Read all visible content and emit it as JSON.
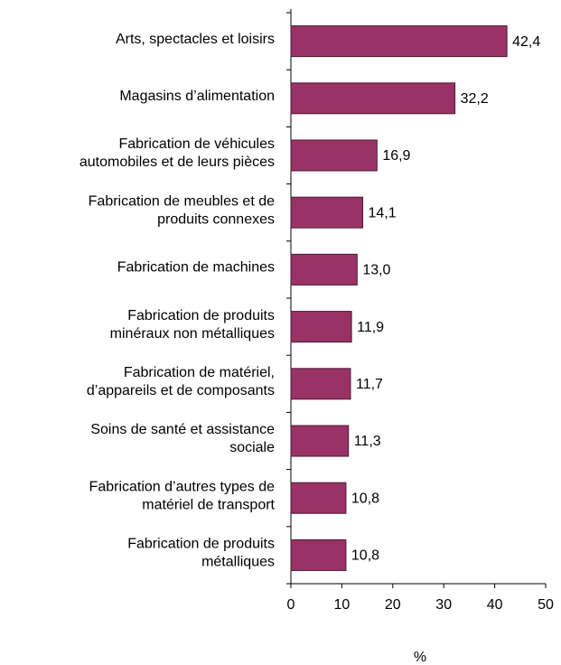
{
  "chart_data": {
    "type": "bar",
    "orientation": "horizontal",
    "categories": [
      [
        "Arts, spectacles et loisirs"
      ],
      [
        "Magasins d’alimentation"
      ],
      [
        "Fabrication de véhicules",
        "automobiles et de leurs pièces"
      ],
      [
        "Fabrication de meubles et de",
        "produits connexes"
      ],
      [
        "Fabrication de machines"
      ],
      [
        "Fabrication de produits",
        "minéraux non métalliques"
      ],
      [
        "Fabrication de matériel,",
        "d’appareils et de composants"
      ],
      [
        "Soins de santé et assistance",
        "sociale"
      ],
      [
        "Fabrication d’autres types de",
        "matériel de transport"
      ],
      [
        "Fabrication de produits",
        "métalliques"
      ]
    ],
    "values": [
      42.4,
      32.2,
      16.9,
      14.1,
      13.0,
      11.9,
      11.7,
      11.3,
      10.8,
      10.8
    ],
    "value_labels": [
      "42,4",
      "32,2",
      "16,9",
      "14,1",
      "13,0",
      "11,9",
      "11,7",
      "11,3",
      "10,8",
      "10,8"
    ],
    "color": "#993366",
    "x_label": "%",
    "xlim": [
      0,
      50
    ],
    "xticks": [
      0,
      10,
      20,
      30,
      40,
      50
    ]
  }
}
